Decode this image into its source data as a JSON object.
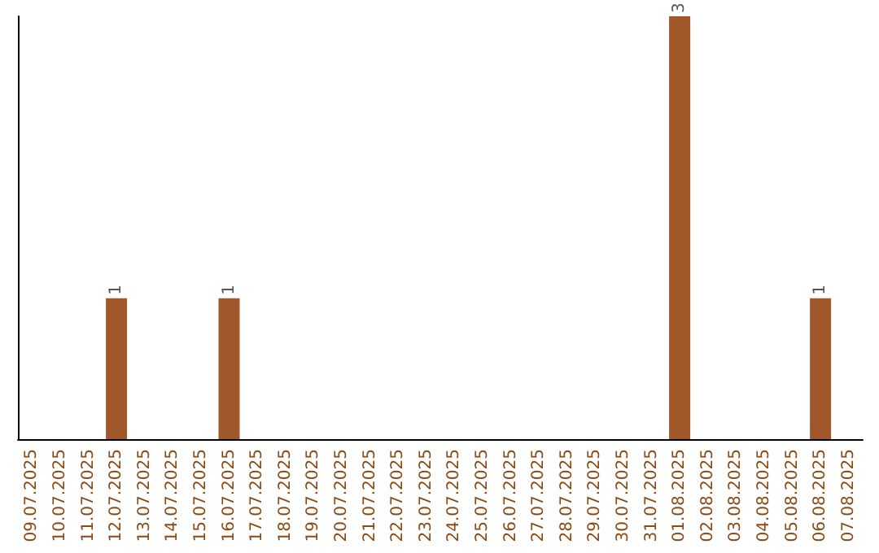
{
  "chart_data": {
    "type": "bar",
    "categories": [
      "09.07.2025",
      "10.07.2025",
      "11.07.2025",
      "12.07.2025",
      "13.07.2025",
      "14.07.2025",
      "15.07.2025",
      "16.07.2025",
      "17.07.2025",
      "18.07.2025",
      "19.07.2025",
      "20.07.2025",
      "21.07.2025",
      "22.07.2025",
      "23.07.2025",
      "24.07.2025",
      "25.07.2025",
      "26.07.2025",
      "27.07.2025",
      "28.07.2025",
      "29.07.2025",
      "30.07.2025",
      "31.07.2025",
      "01.08.2025",
      "02.08.2025",
      "03.08.2025",
      "04.08.2025",
      "05.08.2025",
      "06.08.2025",
      "07.08.2025"
    ],
    "values": [
      0,
      0,
      0,
      1,
      0,
      0,
      0,
      1,
      0,
      0,
      0,
      0,
      0,
      0,
      0,
      0,
      0,
      0,
      0,
      0,
      0,
      0,
      0,
      3,
      0,
      0,
      0,
      0,
      1,
      0
    ],
    "value_labels": [
      null,
      null,
      null,
      "1",
      null,
      null,
      null,
      "1",
      null,
      null,
      null,
      null,
      null,
      null,
      null,
      null,
      null,
      null,
      null,
      null,
      null,
      null,
      null,
      "3",
      null,
      null,
      null,
      null,
      "1",
      null
    ],
    "color": "#a0582b",
    "tick_labels": "x"
  }
}
